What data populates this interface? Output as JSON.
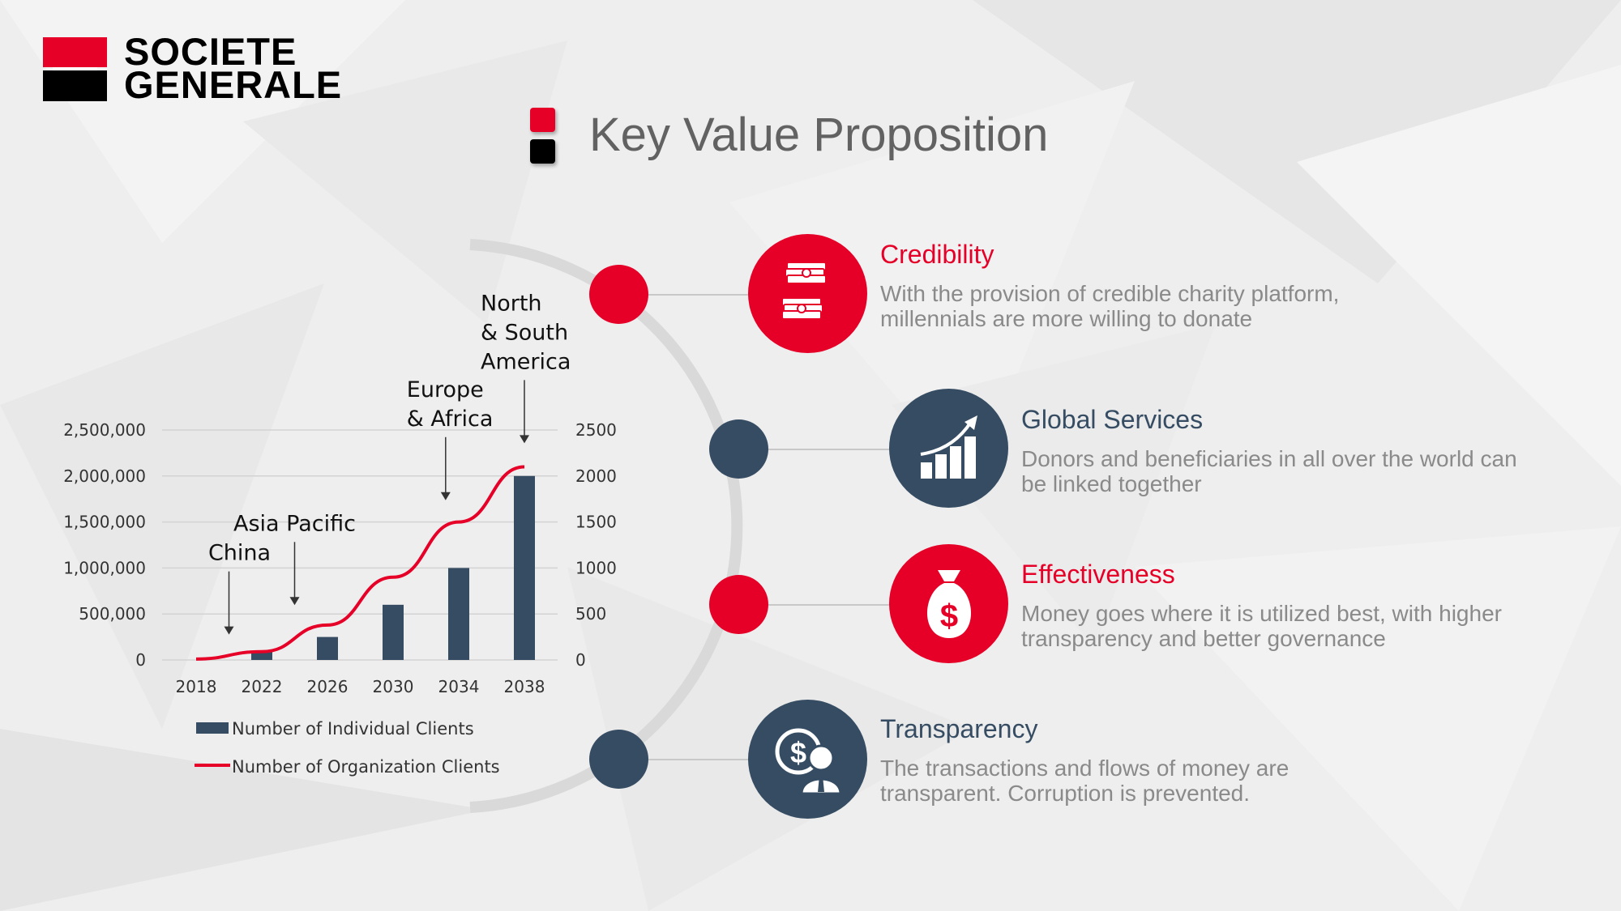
{
  "brand": {
    "name_line1": "SOCIETE",
    "name_line2": "GENERALE",
    "red": "#e60028",
    "navy": "#354c63"
  },
  "page": {
    "title": "Key Value Proposition"
  },
  "chart_data": {
    "type": "bar",
    "categories": [
      "2018",
      "2022",
      "2026",
      "2030",
      "2034",
      "2038"
    ],
    "series": [
      {
        "name": "Number of Individual Clients",
        "type": "bar",
        "axis": "left",
        "color": "#354c63",
        "values": [
          0,
          100000,
          250000,
          600000,
          1000000,
          2000000
        ]
      },
      {
        "name": "Number of Organization Clients",
        "type": "line",
        "axis": "right",
        "color": "#e60028",
        "values": [
          10,
          90,
          380,
          900,
          1500,
          2100
        ]
      }
    ],
    "y_left": {
      "min": 0,
      "max": 2500000,
      "ticks": [
        "0",
        "500,000",
        "1,000,000",
        "1,500,000",
        "2,000,000",
        "2,500,000"
      ]
    },
    "y_right": {
      "min": 0,
      "max": 2500,
      "ticks": [
        "0",
        "500",
        "1000",
        "1500",
        "2000",
        "2500"
      ]
    },
    "grid": true,
    "legend_position": "bottom-left",
    "annotations": [
      {
        "text_lines": [
          "China"
        ],
        "x": "2020",
        "y_right": 100
      },
      {
        "text_lines": [
          "Asia Pacific"
        ],
        "x": "2024",
        "y_right": 420
      },
      {
        "text_lines": [
          "Europe",
          "& Africa"
        ],
        "x": "2033.2",
        "y_right": 1560
      },
      {
        "text_lines": [
          "North",
          "& South",
          "America"
        ],
        "x": "2038",
        "y_right": 2180
      }
    ]
  },
  "features": [
    {
      "title": "Credibility",
      "desc": "With the provision of credible charity platform, millennials are more willing to donate",
      "color": "#e60028",
      "icon": "money-stack-icon"
    },
    {
      "title": "Global Services",
      "desc": "Donors and beneficiaries in all over the world can be linked together",
      "color": "#354c63",
      "icon": "growth-chart-icon"
    },
    {
      "title": "Effectiveness",
      "desc": "Money goes where it is utilized best, with higher transparency and better governance",
      "color": "#e60028",
      "icon": "money-bag-icon"
    },
    {
      "title": "Transparency",
      "desc": "The transactions and flows of money are transparent. Corruption is prevented.",
      "color": "#354c63",
      "icon": "dollar-person-icon"
    }
  ]
}
